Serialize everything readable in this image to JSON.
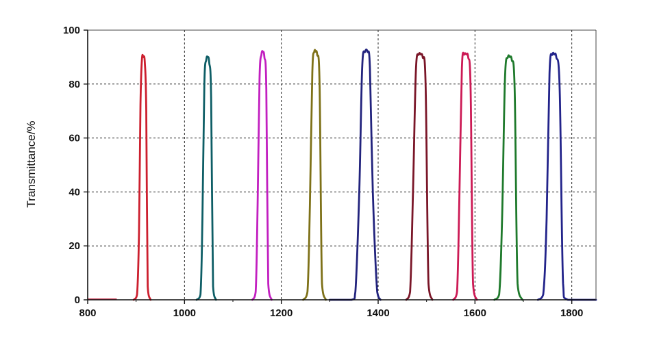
{
  "chart_data": {
    "type": "line",
    "title": "",
    "xlabel": "",
    "ylabel": "Transmittance/%",
    "xlim": [
      800,
      1850
    ],
    "ylim": [
      0,
      100
    ],
    "xticks": [
      800,
      1000,
      1200,
      1400,
      1600,
      1800
    ],
    "yticks": [
      0,
      20,
      40,
      60,
      80,
      100
    ],
    "grid": true,
    "legend": "none",
    "baseline": [
      {
        "color": "#d0405a",
        "x": [
          800,
          860
        ]
      }
    ],
    "series": [
      {
        "color": "#cc1f2e",
        "x": [
          895,
          902,
          906,
          909,
          912,
          915,
          918,
          921,
          924,
          930
        ],
        "y": [
          0,
          2,
          25,
          72,
          89,
          90,
          88,
          70,
          5,
          0
        ]
      },
      {
        "color": "#0e5e66",
        "x": [
          1025,
          1033,
          1037,
          1041,
          1045,
          1048,
          1051,
          1055,
          1059,
          1065
        ],
        "y": [
          0,
          2,
          30,
          80,
          89,
          90,
          88,
          75,
          5,
          0
        ]
      },
      {
        "color": "#c21fc0",
        "x": [
          1140,
          1147,
          1151,
          1155,
          1159,
          1162,
          1165,
          1169,
          1173,
          1180
        ],
        "y": [
          0,
          3,
          35,
          82,
          91,
          92,
          90,
          78,
          6,
          0
        ]
      },
      {
        "color": "#7e7118",
        "x": [
          1245,
          1254,
          1259,
          1264,
          1268,
          1271,
          1274,
          1279,
          1284,
          1292
        ],
        "y": [
          0,
          3,
          35,
          84,
          92,
          92,
          91,
          80,
          6,
          0
        ]
      },
      {
        "color": "#22237d",
        "x": [
          1300,
          1345,
          1353,
          1361,
          1367,
          1373,
          1378,
          1383,
          1389,
          1398,
          1405
        ],
        "y": [
          0,
          0,
          3,
          40,
          86,
          92,
          92,
          86,
          40,
          3,
          0
        ]
      },
      {
        "color": "#7a1628",
        "x": [
          1458,
          1466,
          1472,
          1478,
          1484,
          1488,
          1492,
          1498,
          1504,
          1512
        ],
        "y": [
          0,
          3,
          40,
          85,
          91,
          91,
          90,
          80,
          6,
          0
        ]
      },
      {
        "color": "#cc1a55",
        "x": [
          1555,
          1563,
          1568,
          1573,
          1578,
          1582,
          1586,
          1591,
          1596,
          1604
        ],
        "y": [
          0,
          3,
          40,
          86,
          91,
          91,
          90,
          78,
          6,
          0
        ]
      },
      {
        "color": "#1f7a2c",
        "x": [
          1640,
          1650,
          1656,
          1662,
          1668,
          1672,
          1676,
          1682,
          1688,
          1698
        ],
        "y": [
          0,
          2,
          30,
          82,
          90,
          90,
          89,
          78,
          6,
          0
        ]
      },
      {
        "color": "#22238a",
        "x": [
          1730,
          1741,
          1748,
          1754,
          1760,
          1764,
          1768,
          1775,
          1782,
          1792,
          1850
        ],
        "y": [
          0,
          2,
          30,
          84,
          91,
          91,
          90,
          78,
          6,
          0,
          0
        ]
      }
    ]
  }
}
